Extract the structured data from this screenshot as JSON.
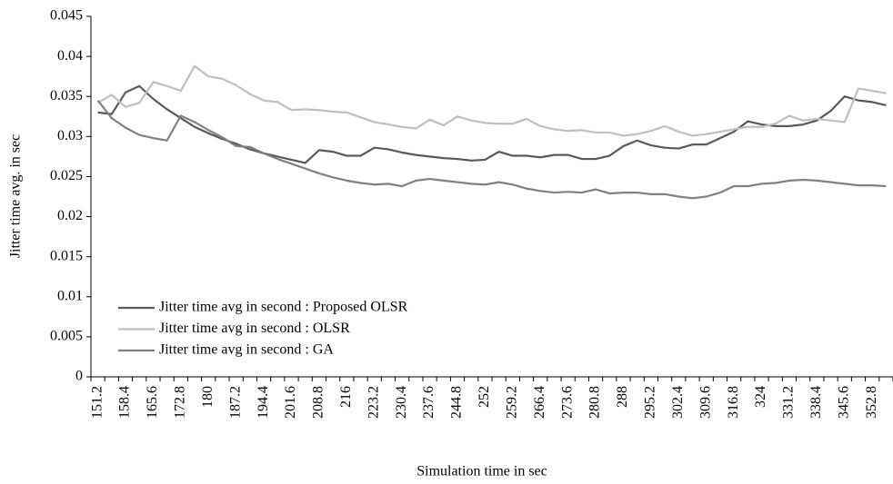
{
  "chart_data": {
    "type": "line",
    "y_label": "Jitter time avg. in sec",
    "x_label": "Simulation time in sec",
    "categories": [
      151.2,
      null,
      158.4,
      null,
      165.6,
      null,
      172.8,
      null,
      180,
      null,
      187.2,
      null,
      194.4,
      null,
      201.6,
      null,
      208.8,
      null,
      216,
      null,
      223.2,
      null,
      230.4,
      null,
      237.6,
      null,
      244.8,
      null,
      252,
      null,
      259.2,
      null,
      266.4,
      null,
      273.6,
      null,
      280.8,
      null,
      288,
      null,
      295.2,
      null,
      302.4,
      null,
      309.6,
      null,
      316.8,
      null,
      324,
      null,
      331.2,
      null,
      338.4,
      null,
      345.6,
      null,
      352.8,
      null
    ],
    "series": [
      {
        "name": "Jitter time avg in second : Proposed OLSR",
        "color": "#595959",
        "values": [
          0.033,
          0.0328,
          0.0355,
          0.0363,
          0.0347,
          0.0334,
          0.0323,
          0.0312,
          0.0304,
          0.0297,
          0.0291,
          0.0284,
          0.0279,
          0.0275,
          0.0271,
          0.0267,
          0.0283,
          0.0281,
          0.0276,
          0.0276,
          0.0286,
          0.0284,
          0.028,
          0.0277,
          0.0275,
          0.0273,
          0.0272,
          0.027,
          0.0271,
          0.0281,
          0.0276,
          0.0276,
          0.0274,
          0.0277,
          0.0277,
          0.0272,
          0.0272,
          0.0276,
          0.0288,
          0.0295,
          0.0289,
          0.0286,
          0.0285,
          0.029,
          0.029,
          0.0298,
          0.0306,
          0.0319,
          0.0315,
          0.0313,
          0.0313,
          0.0315,
          0.032,
          0.0332,
          0.035,
          0.0345,
          0.0343,
          0.0339
        ]
      },
      {
        "name": "Jitter time avg in second : OLSR",
        "color": "#bfbfbf",
        "values": [
          0.0342,
          0.0352,
          0.0337,
          0.0342,
          0.0368,
          0.0363,
          0.0357,
          0.0388,
          0.0375,
          0.0372,
          0.0364,
          0.0353,
          0.0345,
          0.0343,
          0.0333,
          0.0334,
          0.0333,
          0.0331,
          0.033,
          0.0324,
          0.0318,
          0.0315,
          0.0312,
          0.031,
          0.0321,
          0.0314,
          0.0325,
          0.032,
          0.0317,
          0.0316,
          0.0316,
          0.0322,
          0.0313,
          0.0309,
          0.0307,
          0.0308,
          0.0305,
          0.0305,
          0.0301,
          0.0303,
          0.0307,
          0.0313,
          0.0306,
          0.0301,
          0.0303,
          0.0306,
          0.0309,
          0.0312,
          0.0312,
          0.0316,
          0.0326,
          0.032,
          0.0322,
          0.032,
          0.0318,
          0.036,
          0.0357,
          0.0354
        ]
      },
      {
        "name": "Jitter time avg in second : GA",
        "color": "#808080",
        "values": [
          0.0345,
          0.0323,
          0.0311,
          0.0302,
          0.0298,
          0.0295,
          0.0326,
          0.0318,
          0.0308,
          0.0299,
          0.0288,
          0.0287,
          0.0279,
          0.0272,
          0.0266,
          0.026,
          0.0254,
          0.0249,
          0.0245,
          0.0242,
          0.024,
          0.0241,
          0.0238,
          0.0245,
          0.0247,
          0.0245,
          0.0243,
          0.0241,
          0.024,
          0.0243,
          0.024,
          0.0235,
          0.0232,
          0.023,
          0.0231,
          0.023,
          0.0234,
          0.0229,
          0.023,
          0.023,
          0.0228,
          0.0228,
          0.0225,
          0.0223,
          0.0225,
          0.023,
          0.0238,
          0.0238,
          0.0241,
          0.0242,
          0.0245,
          0.0246,
          0.0245,
          0.0243,
          0.0241,
          0.0239,
          0.0239,
          0.0238
        ]
      }
    ],
    "ylim": [
      0,
      0.045
    ],
    "yticks": [
      0,
      0.005,
      0.01,
      0.015,
      0.02,
      0.025,
      0.03,
      0.035,
      0.04,
      0.045
    ],
    "grid": false,
    "legend": "lower-left"
  }
}
